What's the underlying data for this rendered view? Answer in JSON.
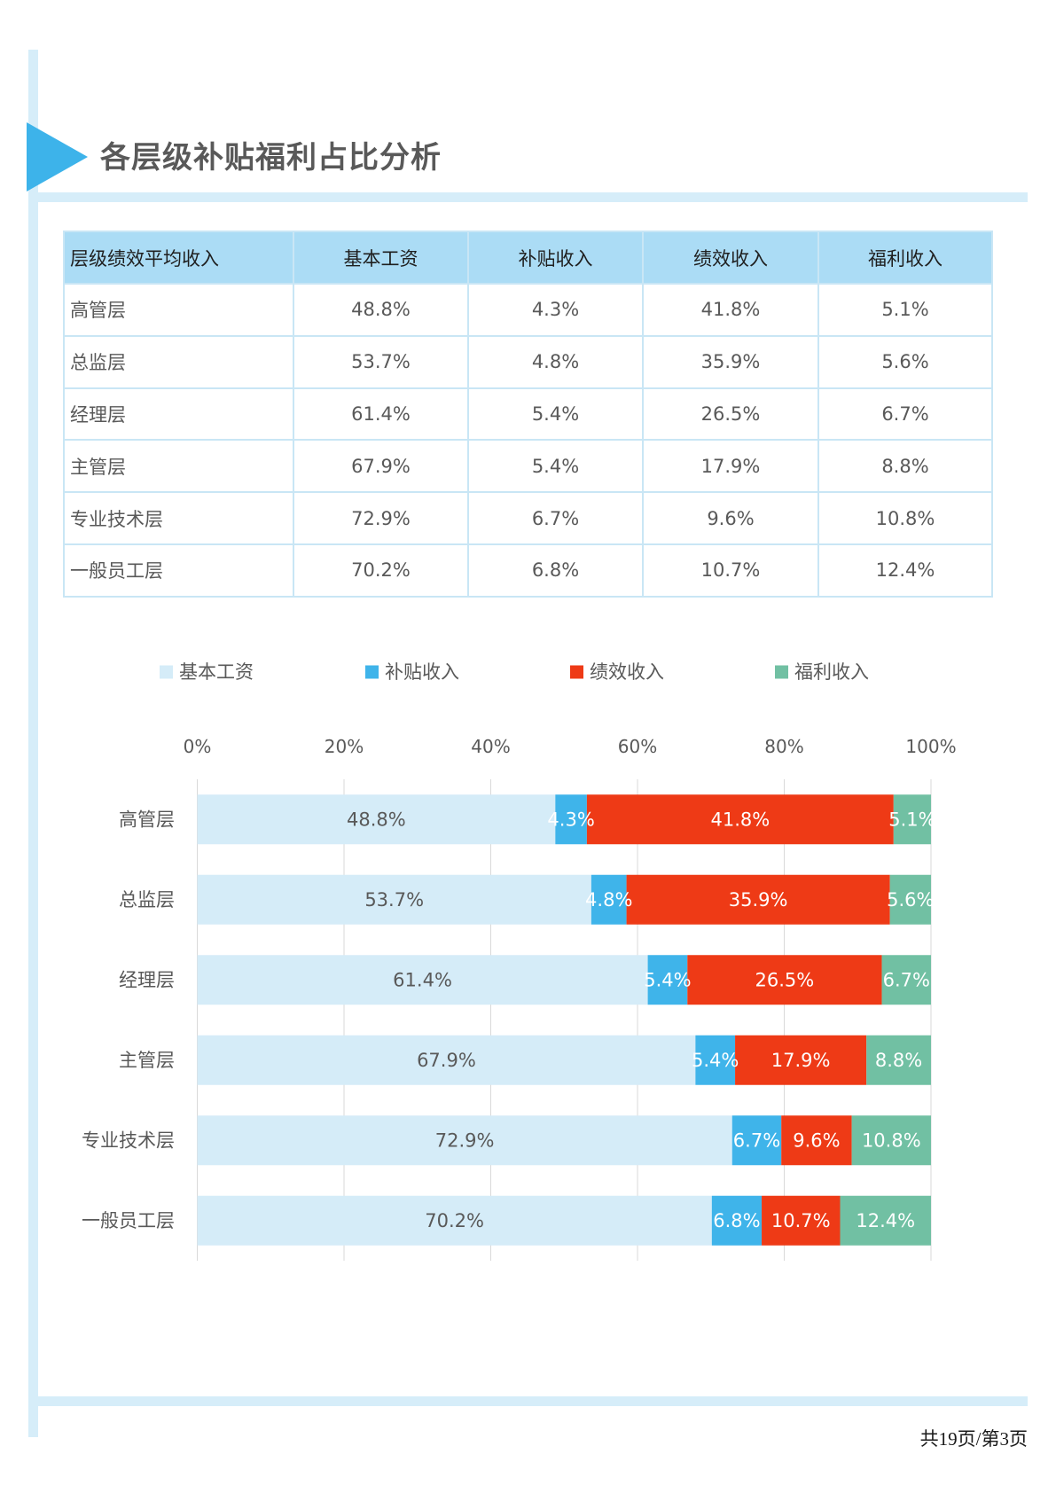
{
  "theme": {
    "accent": "#3db3ea",
    "band": "#d6edf9",
    "table_header": "#abdcf5",
    "table_border": "#c9e6f5"
  },
  "page": {
    "title": "各层级补贴福利占比分析",
    "footer": "共19页/第3页"
  },
  "table": {
    "headers": [
      "层级绩效平均收入",
      "基本工资",
      "补贴收入",
      "绩效收入",
      "福利收入"
    ],
    "rows": [
      [
        "高管层",
        "48.8%",
        "4.3%",
        "41.8%",
        "5.1%"
      ],
      [
        "总监层",
        "53.7%",
        "4.8%",
        "35.9%",
        "5.6%"
      ],
      [
        "经理层",
        "61.4%",
        "5.4%",
        "26.5%",
        "6.7%"
      ],
      [
        "主管层",
        "67.9%",
        "5.4%",
        "17.9%",
        "8.8%"
      ],
      [
        "专业技术层",
        "72.9%",
        "6.7%",
        "9.6%",
        "10.8%"
      ],
      [
        "一般员工层",
        "70.2%",
        "6.8%",
        "10.7%",
        "12.4%"
      ]
    ]
  },
  "chart_data": {
    "type": "bar",
    "orientation": "horizontal",
    "stacked": true,
    "normalized": true,
    "categories": [
      "高管层",
      "总监层",
      "经理层",
      "主管层",
      "专业技术层",
      "一般员工层"
    ],
    "series": [
      {
        "name": "基本工资",
        "values": [
          48.8,
          53.7,
          61.4,
          67.9,
          72.9,
          70.2
        ],
        "color": "#d5ecf8"
      },
      {
        "name": "补贴收入",
        "values": [
          4.3,
          4.8,
          5.4,
          5.4,
          6.7,
          6.8
        ],
        "color": "#3fb4ea"
      },
      {
        "name": "绩效收入",
        "values": [
          41.8,
          35.9,
          26.5,
          17.9,
          9.6,
          10.7
        ],
        "color": "#ee3a16"
      },
      {
        "name": "福利收入",
        "values": [
          5.1,
          5.6,
          6.7,
          8.8,
          10.8,
          12.4
        ],
        "color": "#71c0a3"
      }
    ],
    "value_unit": "%",
    "xlim": [
      0,
      100
    ],
    "xticks": [
      0,
      20,
      40,
      60,
      80,
      100
    ],
    "xtick_labels": [
      "0%",
      "20%",
      "40%",
      "60%",
      "80%",
      "100%"
    ],
    "x_axis_position": "top",
    "grid": true,
    "legend": "top",
    "data_labels": true
  }
}
